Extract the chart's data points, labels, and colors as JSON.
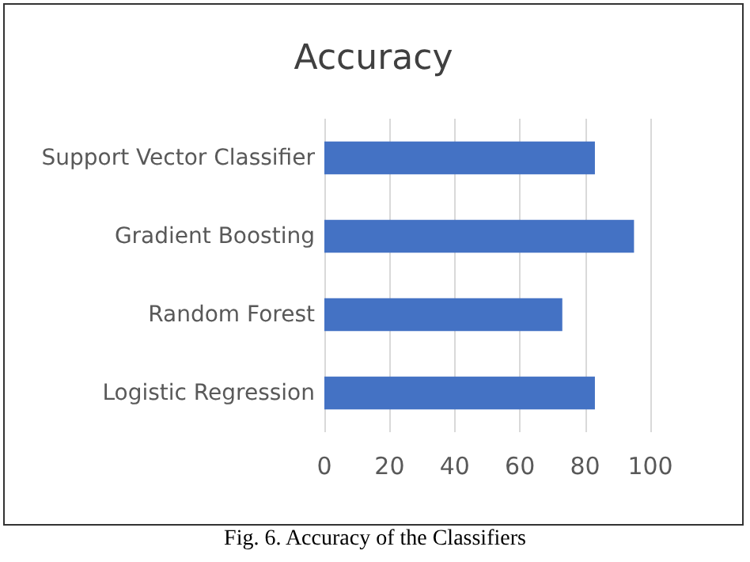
{
  "chart_data": {
    "type": "bar",
    "orientation": "horizontal",
    "title": "Accuracy",
    "annotations": [
      "Fig. 6. Accuracy of the Classifiers"
    ],
    "categories": [
      "Support Vector Classifier",
      "Gradient Boosting",
      "Random Forest",
      "Logistic Regression"
    ],
    "values": [
      83,
      95,
      73,
      83
    ],
    "color": "#4472c4",
    "xlim": [
      0,
      100
    ],
    "xticks": [
      0,
      20,
      40,
      60,
      80,
      100
    ],
    "grid": "x"
  }
}
